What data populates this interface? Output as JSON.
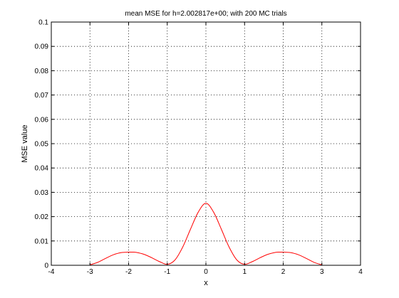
{
  "chart_data": {
    "type": "line",
    "title": "mean MSE for h=2.002817e+00; with 200 MC trials",
    "xlabel": "x",
    "ylabel": "MSE value",
    "xlim": [
      -4,
      4
    ],
    "ylim": [
      0,
      0.1
    ],
    "xticks": [
      "-4",
      "-3",
      "-2",
      "-1",
      "0",
      "1",
      "2",
      "3",
      "4"
    ],
    "yticks": [
      "0",
      "0.01",
      "0.02",
      "0.03",
      "0.04",
      "0.05",
      "0.06",
      "0.07",
      "0.08",
      "0.09",
      "0.1"
    ],
    "grid": true,
    "series": [
      {
        "color": "#ff0000",
        "x": [
          -3,
          -2.8,
          -2.6,
          -2.4,
          -2.2,
          -2.0,
          -1.9,
          -1.8,
          -1.6,
          -1.4,
          -1.2,
          -1.0,
          -0.8,
          -0.6,
          -0.4,
          -0.2,
          0,
          0.2,
          0.4,
          0.6,
          0.8,
          1.0,
          1.2,
          1.4,
          1.6,
          1.8,
          1.9,
          2.0,
          2.2,
          2.4,
          2.6,
          2.8,
          3.0
        ],
        "y": [
          0.0002,
          0.0012,
          0.0028,
          0.0043,
          0.0052,
          0.0054,
          0.0054,
          0.0053,
          0.0045,
          0.0031,
          0.0015,
          0.0004,
          0.0022,
          0.0075,
          0.0148,
          0.0218,
          0.0255,
          0.0218,
          0.0148,
          0.0075,
          0.0022,
          0.0004,
          0.0015,
          0.0031,
          0.0045,
          0.0053,
          0.0054,
          0.0054,
          0.0052,
          0.0043,
          0.0028,
          0.0012,
          0.0002
        ]
      }
    ]
  }
}
